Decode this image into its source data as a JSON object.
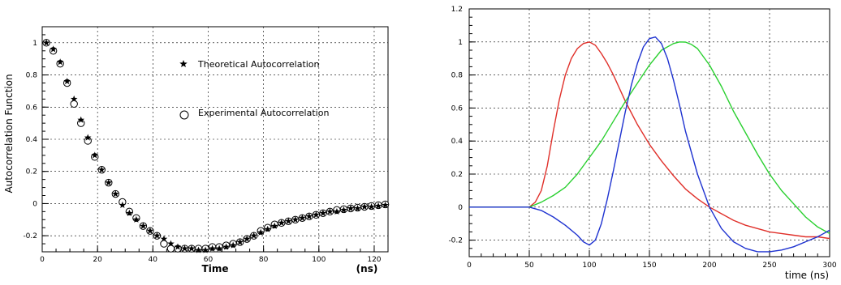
{
  "chart_data": [
    {
      "type": "scatter",
      "title": "",
      "xlabel": "Time",
      "xunit": "(ns)",
      "ylabel": "Autocorrelation Function",
      "xlim": [
        0,
        125
      ],
      "ylim": [
        -0.3,
        1.1
      ],
      "xticks": [
        0,
        20,
        40,
        60,
        80,
        100,
        120
      ],
      "yticks": [
        -0.2,
        0,
        0.2,
        0.4,
        0.6,
        0.8,
        1
      ],
      "grid": true,
      "legend_position": "top-right",
      "series": [
        {
          "name": "Theoretical Autocorrelation",
          "marker": "star",
          "x": [
            1.5,
            4,
            6.5,
            9,
            11.5,
            14,
            16.5,
            19,
            21.5,
            24,
            26.5,
            29,
            31.5,
            34,
            36.5,
            39,
            41.5,
            44,
            46.5,
            49,
            51.5,
            54,
            56.5,
            59,
            61.5,
            64,
            66.5,
            69,
            71.5,
            74,
            76.5,
            79,
            81.5,
            84,
            86.5,
            89,
            91.5,
            94,
            96.5,
            99,
            101.5,
            104,
            106.5,
            109,
            111.5,
            114,
            116.5,
            119,
            121.5,
            124
          ],
          "y": [
            1.0,
            0.96,
            0.88,
            0.76,
            0.65,
            0.52,
            0.41,
            0.3,
            0.21,
            0.13,
            0.06,
            -0.01,
            -0.06,
            -0.1,
            -0.14,
            -0.17,
            -0.2,
            -0.22,
            -0.25,
            -0.27,
            -0.28,
            -0.28,
            -0.29,
            -0.29,
            -0.28,
            -0.28,
            -0.27,
            -0.26,
            -0.24,
            -0.22,
            -0.2,
            -0.18,
            -0.16,
            -0.14,
            -0.12,
            -0.11,
            -0.1,
            -0.09,
            -0.08,
            -0.07,
            -0.06,
            -0.05,
            -0.05,
            -0.04,
            -0.03,
            -0.03,
            -0.02,
            -0.02,
            -0.015,
            -0.01
          ]
        },
        {
          "name": "Experimental Autocorrelation",
          "marker": "open-circle",
          "x": [
            1.5,
            4,
            6.5,
            9,
            11.5,
            14,
            16.5,
            19,
            21.5,
            24,
            26.5,
            29,
            31.5,
            34,
            36.5,
            39,
            41.5,
            44,
            46.5,
            49,
            51.5,
            54,
            56.5,
            59,
            61.5,
            64,
            66.5,
            69,
            71.5,
            74,
            76.5,
            79,
            81.5,
            84,
            86.5,
            89,
            91.5,
            94,
            96.5,
            99,
            101.5,
            104,
            106.5,
            109,
            111.5,
            114,
            116.5,
            119,
            121.5,
            124
          ],
          "y": [
            1.0,
            0.95,
            0.87,
            0.75,
            0.62,
            0.5,
            0.39,
            0.29,
            0.21,
            0.13,
            0.06,
            0.01,
            -0.05,
            -0.09,
            -0.14,
            -0.17,
            -0.2,
            -0.25,
            -0.28,
            -0.28,
            -0.28,
            -0.28,
            -0.28,
            -0.28,
            -0.27,
            -0.27,
            -0.26,
            -0.25,
            -0.24,
            -0.22,
            -0.2,
            -0.17,
            -0.15,
            -0.13,
            -0.12,
            -0.11,
            -0.1,
            -0.09,
            -0.08,
            -0.07,
            -0.06,
            -0.05,
            -0.04,
            -0.035,
            -0.03,
            -0.025,
            -0.02,
            -0.015,
            -0.01,
            -0.005
          ]
        }
      ]
    },
    {
      "type": "line",
      "title": "",
      "xlabel": "time (ns)",
      "ylabel": "",
      "xlim": [
        0,
        300
      ],
      "ylim": [
        -0.3,
        1.2
      ],
      "xticks": [
        0,
        50,
        100,
        150,
        200,
        250,
        300
      ],
      "yticks": [
        -0.2,
        0,
        0.2,
        0.4,
        0.6,
        0.8,
        1,
        1.2
      ],
      "grid": true,
      "series": [
        {
          "color": "#e0302a",
          "x": [
            0,
            20,
            40,
            50,
            55,
            60,
            65,
            70,
            75,
            80,
            85,
            90,
            95,
            100,
            105,
            110,
            115,
            120,
            125,
            130,
            135,
            140,
            145,
            150,
            160,
            170,
            180,
            190,
            200,
            210,
            220,
            230,
            240,
            250,
            260,
            270,
            280,
            290,
            300
          ],
          "y": [
            0,
            0,
            0,
            0,
            0.03,
            0.1,
            0.25,
            0.46,
            0.65,
            0.8,
            0.9,
            0.96,
            0.99,
            1.0,
            0.98,
            0.93,
            0.87,
            0.8,
            0.72,
            0.64,
            0.57,
            0.5,
            0.44,
            0.38,
            0.28,
            0.19,
            0.11,
            0.05,
            0.0,
            -0.04,
            -0.08,
            -0.11,
            -0.13,
            -0.15,
            -0.16,
            -0.17,
            -0.18,
            -0.18,
            -0.19
          ]
        },
        {
          "color": "#2ad030",
          "x": [
            0,
            20,
            40,
            50,
            60,
            70,
            80,
            90,
            100,
            110,
            120,
            130,
            140,
            150,
            160,
            170,
            175,
            180,
            185,
            190,
            200,
            210,
            220,
            230,
            240,
            250,
            260,
            270,
            280,
            290,
            300
          ],
          "y": [
            0,
            0,
            0,
            0,
            0.03,
            0.07,
            0.12,
            0.2,
            0.3,
            0.4,
            0.52,
            0.64,
            0.75,
            0.86,
            0.95,
            0.99,
            1.0,
            0.999,
            0.985,
            0.96,
            0.86,
            0.73,
            0.58,
            0.45,
            0.32,
            0.2,
            0.1,
            0.02,
            -0.06,
            -0.12,
            -0.16
          ]
        },
        {
          "color": "#1e32d0",
          "x": [
            0,
            20,
            40,
            50,
            60,
            70,
            80,
            90,
            95,
            100,
            105,
            110,
            115,
            120,
            125,
            130,
            135,
            140,
            145,
            150,
            155,
            160,
            165,
            170,
            175,
            180,
            190,
            200,
            210,
            220,
            230,
            240,
            250,
            260,
            270,
            280,
            290,
            300
          ],
          "y": [
            0,
            0,
            0,
            0,
            -0.02,
            -0.06,
            -0.11,
            -0.17,
            -0.21,
            -0.23,
            -0.2,
            -0.1,
            0.05,
            0.22,
            0.4,
            0.58,
            0.74,
            0.87,
            0.97,
            1.02,
            1.03,
            0.99,
            0.9,
            0.77,
            0.62,
            0.46,
            0.2,
            0.0,
            -0.13,
            -0.21,
            -0.25,
            -0.27,
            -0.27,
            -0.26,
            -0.24,
            -0.21,
            -0.18,
            -0.14
          ]
        }
      ]
    }
  ]
}
